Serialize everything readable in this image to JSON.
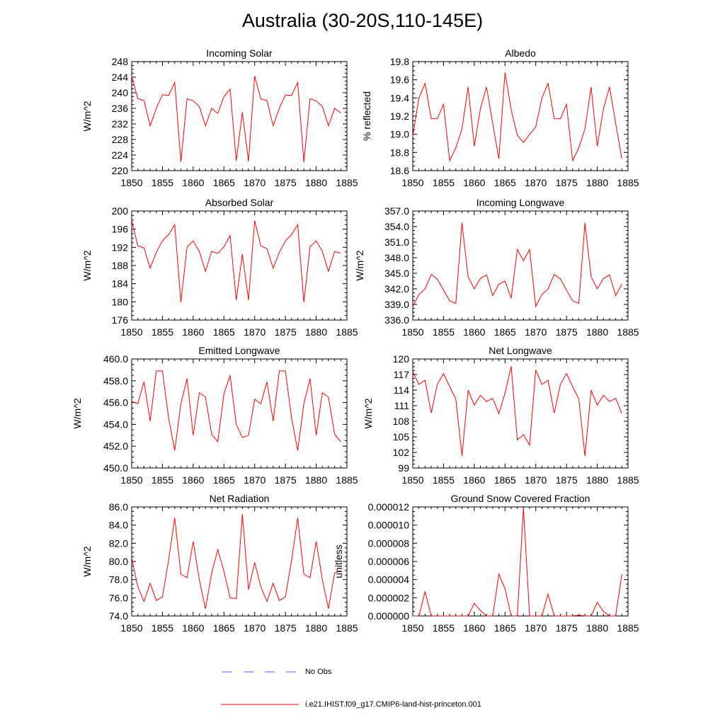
{
  "title": "Australia (30-20S,110-145E)",
  "legend": [
    {
      "label": "No Obs",
      "color": "#5a5aff",
      "dash": true
    },
    {
      "label": "i.e21.IHIST.f09_g17.CMIP6-land-hist-princeton.001",
      "color": "#ff0000",
      "dash": false
    }
  ],
  "line_color": "#ff0000",
  "chart_data": [
    {
      "type": "line",
      "title": "Incoming Solar",
      "ylabel": "W/m^2",
      "xlim": [
        1850,
        1885
      ],
      "xticks": [
        "1850",
        "1855",
        "1860",
        "1865",
        "1870",
        "1875",
        "1880",
        "1885"
      ],
      "ylim": [
        220,
        248
      ],
      "yticks": [
        "220",
        "224",
        "228",
        "232",
        "236",
        "240",
        "244",
        "248"
      ],
      "x_start": 1850,
      "values": [
        244.2,
        238.5,
        238.0,
        231.5,
        236.0,
        239.5,
        239.3,
        242.6,
        222.2,
        238.5,
        237.9,
        236.5,
        231.5,
        236.0,
        234.7,
        239.0,
        240.9,
        222.5,
        235.0,
        222.4,
        244.3,
        238.4,
        238.0,
        231.5,
        236.0,
        239.4,
        239.3,
        242.6,
        222.2,
        238.5,
        237.9,
        236.5,
        231.5,
        236.0,
        234.8
      ]
    },
    {
      "type": "line",
      "title": "Albedo",
      "ylabel": "% reflected",
      "xlim": [
        1850,
        1885
      ],
      "xticks": [
        "1850",
        "1855",
        "1860",
        "1865",
        "1870",
        "1875",
        "1880",
        "1885"
      ],
      "ylim": [
        18.6,
        19.8
      ],
      "yticks": [
        "18.6",
        "18.8",
        "19.0",
        "19.2",
        "19.4",
        "19.6",
        "19.8"
      ],
      "x_start": 1850,
      "values": [
        18.98,
        19.4,
        19.56,
        19.17,
        19.17,
        19.33,
        18.71,
        18.85,
        19.06,
        19.52,
        18.87,
        19.28,
        19.52,
        19.12,
        18.73,
        19.68,
        19.27,
        18.99,
        18.91,
        19.0,
        19.08,
        19.4,
        19.56,
        19.17,
        19.17,
        19.33,
        18.71,
        18.85,
        19.06,
        19.52,
        18.87,
        19.28,
        19.52,
        19.12,
        18.73
      ]
    },
    {
      "type": "line",
      "title": "Absorbed Solar",
      "ylabel": "W/m^2",
      "xlim": [
        1850,
        1885
      ],
      "xticks": [
        "1850",
        "1855",
        "1860",
        "1865",
        "1870",
        "1875",
        "1880",
        "1885"
      ],
      "ylim": [
        176,
        200
      ],
      "yticks": [
        "176",
        "180",
        "184",
        "188",
        "192",
        "196",
        "200"
      ],
      "x_start": 1850,
      "values": [
        197.9,
        192.3,
        191.9,
        187.4,
        190.9,
        193.4,
        194.8,
        197.0,
        179.9,
        192.1,
        193.4,
        191.1,
        186.7,
        191.1,
        190.7,
        192.1,
        194.6,
        180.4,
        190.5,
        180.4,
        197.9,
        192.3,
        191.7,
        187.4,
        190.9,
        193.4,
        194.8,
        197.0,
        179.9,
        192.1,
        193.4,
        191.1,
        186.7,
        191.1,
        190.7
      ]
    },
    {
      "type": "line",
      "title": "Incoming Longwave",
      "ylabel": "W/m^2",
      "xlim": [
        1850,
        1885
      ],
      "xticks": [
        "1850",
        "1855",
        "1860",
        "1865",
        "1870",
        "1875",
        "1880",
        "1885"
      ],
      "ylim": [
        336,
        357
      ],
      "yticks": [
        "336.0",
        "339.0",
        "342.0",
        "345.0",
        "348.0",
        "351.0",
        "354.0",
        "357.0"
      ],
      "x_start": 1850,
      "values": [
        338.6,
        340.9,
        342.0,
        344.8,
        343.9,
        341.8,
        339.7,
        339.2,
        354.7,
        344.3,
        342.0,
        344.0,
        344.7,
        340.7,
        342.9,
        343.5,
        340.2,
        349.6,
        347.4,
        349.6,
        338.6,
        340.9,
        342.0,
        344.8,
        343.9,
        341.8,
        339.7,
        339.2,
        354.7,
        344.3,
        342.0,
        344.0,
        344.7,
        340.7,
        342.9
      ]
    },
    {
      "type": "line",
      "title": "Emitted Longwave",
      "ylabel": "W/m^2",
      "xlim": [
        1850,
        1885
      ],
      "xticks": [
        "1850",
        "1855",
        "1860",
        "1865",
        "1870",
        "1875",
        "1880",
        "1885"
      ],
      "ylim": [
        450,
        460
      ],
      "yticks": [
        "450.0",
        "452.0",
        "454.0",
        "456.0",
        "458.0",
        "460.0"
      ],
      "x_start": 1850,
      "values": [
        456.1,
        455.9,
        457.9,
        454.3,
        458.9,
        458.9,
        454.6,
        451.6,
        455.9,
        458.2,
        453.0,
        456.9,
        456.5,
        453.1,
        452.4,
        456.8,
        458.5,
        454.0,
        452.8,
        453.0,
        456.3,
        455.9,
        457.9,
        454.3,
        458.9,
        458.9,
        454.6,
        451.6,
        455.9,
        458.2,
        453.0,
        456.9,
        456.5,
        453.1,
        452.4
      ]
    },
    {
      "type": "line",
      "title": "Net Longwave",
      "ylabel": "W/m^2",
      "xlim": [
        1850,
        1885
      ],
      "xticks": [
        "1850",
        "1855",
        "1860",
        "1865",
        "1870",
        "1875",
        "1880",
        "1885"
      ],
      "ylim": [
        99,
        120
      ],
      "yticks": [
        "99",
        "102",
        "105",
        "108",
        "111",
        "114",
        "117",
        "120"
      ],
      "x_start": 1850,
      "values": [
        117.5,
        115.1,
        115.9,
        109.6,
        115.1,
        117.2,
        114.7,
        112.3,
        101.3,
        114.0,
        111.1,
        113.0,
        111.8,
        112.4,
        109.5,
        113.4,
        118.6,
        104.4,
        105.4,
        103.4,
        117.9,
        115.1,
        115.9,
        109.6,
        115.1,
        117.2,
        114.7,
        112.3,
        101.3,
        114.0,
        111.1,
        113.0,
        111.8,
        112.4,
        109.5
      ]
    },
    {
      "type": "line",
      "title": "Net Radiation",
      "ylabel": "W/m^2",
      "xlim": [
        1850,
        1885
      ],
      "xticks": [
        "1850",
        "1855",
        "1860",
        "1865",
        "1870",
        "1875",
        "1880",
        "1885"
      ],
      "ylim": [
        74,
        86
      ],
      "yticks": [
        "74.0",
        "76.0",
        "78.0",
        "80.0",
        "82.0",
        "84.0",
        "86.0"
      ],
      "x_start": 1850,
      "values": [
        80.4,
        77.2,
        75.6,
        77.6,
        75.7,
        76.1,
        80.1,
        84.8,
        78.6,
        78.2,
        82.2,
        78.0,
        74.8,
        78.7,
        81.3,
        78.9,
        76.0,
        75.9,
        85.2,
        76.9,
        79.9,
        77.2,
        75.6,
        77.6,
        75.7,
        76.1,
        80.1,
        84.8,
        78.6,
        78.2,
        82.2,
        78.0,
        74.8,
        78.7,
        79.0
      ]
    },
    {
      "type": "line",
      "title": "Ground Snow Covered Fraction",
      "ylabel": "unitless",
      "xlim": [
        1850,
        1885
      ],
      "xticks": [
        "1850",
        "1855",
        "1860",
        "1865",
        "1870",
        "1875",
        "1880",
        "1885"
      ],
      "ylim": [
        0,
        1.2e-05
      ],
      "yticks": [
        "0.000000",
        "0.000002",
        "0.000004",
        "0.000006",
        "0.000008",
        "0.000010",
        "0.000012"
      ],
      "x_start": 1850,
      "values": [
        0,
        0,
        2.7e-06,
        0,
        0,
        0,
        0,
        0,
        0,
        0,
        1.4e-06,
        6e-07,
        0,
        0,
        4.6e-06,
        3e-06,
        0,
        0,
        1.19e-05,
        0,
        0,
        0,
        2.4e-06,
        0,
        0,
        0,
        0,
        1e-07,
        0,
        0,
        1.5e-06,
        5e-07,
        0,
        0,
        4.6e-06
      ]
    }
  ]
}
